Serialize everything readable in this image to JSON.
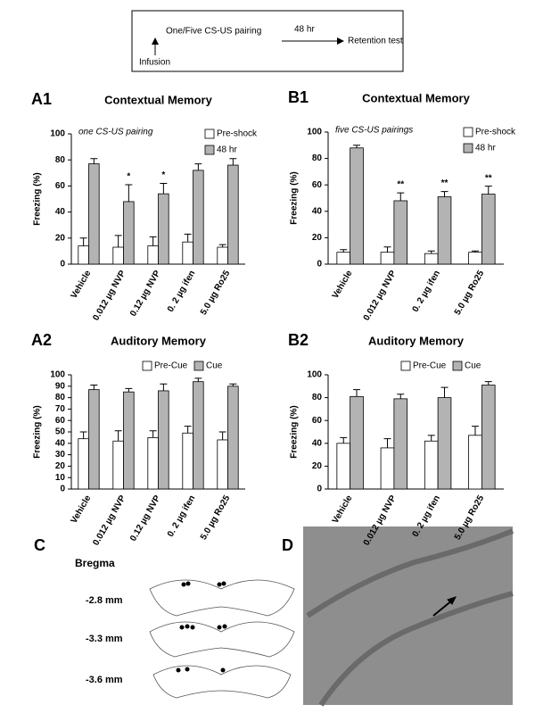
{
  "diagram": {
    "step1": "One/Five CS-US pairing",
    "interval": "48 hr",
    "step2": "Retention test",
    "infusion": "Infusion"
  },
  "chart_data": [
    {
      "type": "bar",
      "label": "A1",
      "title": "Contextual Memory",
      "annotation": "one CS-US pairing",
      "ylabel": "Freezing (%)",
      "legend": "upper right",
      "categories": [
        "Vehicle",
        "0.012 µg NVP",
        "0.12 µg NVP",
        "0. 2 µg ifen",
        "5.0 µg Ro25"
      ],
      "series": [
        {
          "name": "Pre-shock",
          "color": "#ffffff",
          "values": [
            14,
            13,
            14,
            17,
            13
          ],
          "errors": [
            6,
            9,
            7,
            6,
            2
          ]
        },
        {
          "name": "48 hr",
          "color": "#b3b3b3",
          "values": [
            77,
            48,
            54,
            72,
            76
          ],
          "errors": [
            4,
            13,
            8,
            5,
            5
          ],
          "significance": [
            null,
            "*",
            "*",
            null,
            null
          ]
        }
      ],
      "ylim": [
        0,
        100
      ],
      "yticks": [
        0,
        20,
        40,
        60,
        80,
        100
      ]
    },
    {
      "type": "bar",
      "label": "B1",
      "title": "Contextual Memory",
      "annotation": "five CS-US pairings",
      "ylabel": "Freezing (%)",
      "legend": "upper right",
      "categories": [
        "Vehicle",
        "0.012 µg NVP",
        "0. 2 µg ifen",
        "5.0 µg Ro25"
      ],
      "series": [
        {
          "name": "Pre-shock",
          "color": "#ffffff",
          "values": [
            9,
            9,
            8,
            9
          ],
          "errors": [
            2,
            4,
            2,
            1
          ]
        },
        {
          "name": "48 hr",
          "color": "#b3b3b3",
          "values": [
            88,
            48,
            51,
            53
          ],
          "errors": [
            2,
            6,
            4,
            6
          ],
          "significance": [
            null,
            "**",
            "**",
            "**"
          ]
        }
      ],
      "ylim": [
        0,
        100
      ],
      "yticks": [
        0,
        20,
        40,
        60,
        80,
        100
      ]
    },
    {
      "type": "bar",
      "label": "A2",
      "title": "Auditory Memory",
      "ylabel": "Freezing (%)",
      "legend": "top",
      "categories": [
        "Vehicle",
        "0.012 µg NVP",
        "0.12 µg NVP",
        "0. 2 µg ifen",
        "5.0 µg Ro25"
      ],
      "series": [
        {
          "name": "Pre-Cue",
          "color": "#ffffff",
          "values": [
            44,
            42,
            45,
            49,
            43
          ],
          "errors": [
            6,
            9,
            6,
            6,
            7
          ]
        },
        {
          "name": "Cue",
          "color": "#b3b3b3",
          "values": [
            87,
            85,
            86,
            94,
            90
          ],
          "errors": [
            4,
            3,
            6,
            3,
            2
          ]
        }
      ],
      "ylim": [
        0,
        100
      ],
      "yticks": [
        0,
        10,
        20,
        30,
        40,
        50,
        60,
        70,
        80,
        90,
        100
      ]
    },
    {
      "type": "bar",
      "label": "B2",
      "title": "Auditory Memory",
      "ylabel": "Freezing (%)",
      "legend": "top",
      "categories": [
        "Vehicle",
        "0.012 µg NVP",
        "0. 2 µg ifen",
        "5.0 µg Ro25"
      ],
      "series": [
        {
          "name": "Pre-Cue",
          "color": "#ffffff",
          "values": [
            40,
            36,
            42,
            47
          ],
          "errors": [
            5,
            8,
            5,
            8
          ]
        },
        {
          "name": "Cue",
          "color": "#b3b3b3",
          "values": [
            81,
            79,
            80,
            91
          ],
          "errors": [
            6,
            4,
            9,
            3
          ]
        }
      ],
      "ylim": [
        0,
        100
      ],
      "yticks": [
        0,
        20,
        40,
        60,
        80,
        100
      ]
    }
  ],
  "panel_c": {
    "label": "C",
    "heading": "Bregma",
    "levels": [
      "-2.8 mm",
      "-3.3 mm",
      "-3.6 mm"
    ]
  },
  "panel_d": {
    "label": "D"
  }
}
